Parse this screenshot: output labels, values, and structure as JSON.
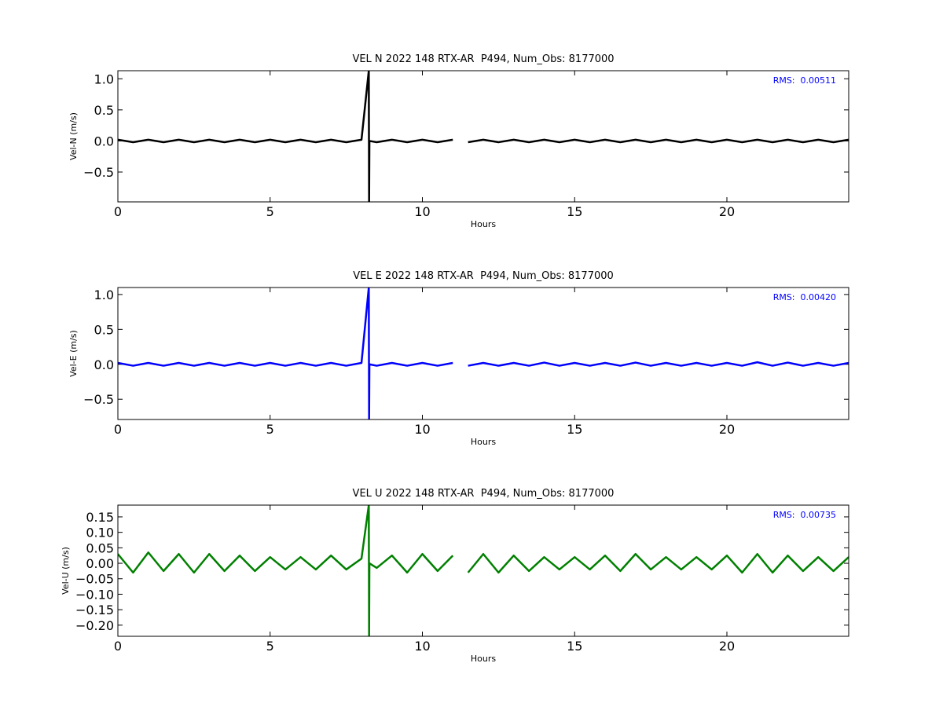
{
  "chart_data": [
    {
      "type": "line",
      "title": "VEL N 2022 148 RTX-AR  P494, Num_Obs: 8177000",
      "y_label": "Vel-N (m/s)",
      "x_label": "Hours",
      "annotation": "RMS:  0.00511",
      "annotation_color": "#0000ff",
      "color": "#000000",
      "xlim": [
        0,
        24
      ],
      "xticks": [
        0,
        5,
        10,
        15,
        20
      ],
      "ylim": [
        -0.98,
        1.13
      ],
      "yticks": [
        {
          "value": 1.0,
          "label": "1.0"
        },
        0.5,
        {
          "value": 0.0,
          "label": "0.0"
        },
        {
          "value": -0.5,
          "label": "−0.5"
        }
      ],
      "x": [
        0,
        0.5,
        1,
        1.5,
        2,
        2.5,
        3,
        3.5,
        4,
        4.5,
        5,
        5.5,
        6,
        6.5,
        7,
        7.5,
        8,
        8.24,
        8.25,
        8.26,
        8.5,
        9,
        9.5,
        10,
        10.5,
        11,
        11.25,
        11.5,
        12,
        12.5,
        13,
        13.5,
        14,
        14.5,
        15,
        15.5,
        16,
        16.5,
        17,
        17.5,
        18,
        18.5,
        19,
        19.5,
        20,
        20.5,
        21,
        21.5,
        22,
        22.5,
        23,
        23.5,
        24
      ],
      "values": [
        0.02,
        -0.02,
        0.02,
        -0.02,
        0.02,
        -0.02,
        0.02,
        -0.02,
        0.02,
        -0.02,
        0.02,
        -0.02,
        0.02,
        -0.02,
        0.02,
        -0.02,
        0.02,
        1.13,
        -0.98,
        0.0,
        -0.02,
        0.02,
        -0.02,
        0.02,
        -0.02,
        0.02,
        null,
        -0.02,
        0.02,
        -0.02,
        0.02,
        -0.02,
        0.02,
        -0.02,
        0.02,
        -0.02,
        0.02,
        -0.02,
        0.02,
        -0.02,
        0.02,
        -0.02,
        0.02,
        -0.02,
        0.02,
        -0.02,
        0.02,
        -0.02,
        0.02,
        -0.02,
        0.02,
        -0.02,
        0.02
      ]
    },
    {
      "type": "line",
      "title": "VEL E 2022 148 RTX-AR  P494, Num_Obs: 8177000",
      "y_label": "Vel-E (m/s)",
      "x_label": "Hours",
      "annotation": "RMS:  0.00420",
      "annotation_color": "#0000ff",
      "color": "#0000ff",
      "xlim": [
        0,
        24
      ],
      "xticks": [
        0,
        5,
        10,
        15,
        20
      ],
      "ylim": [
        -0.79,
        1.1
      ],
      "yticks": [
        {
          "value": 1.0,
          "label": "1.0"
        },
        0.5,
        {
          "value": 0.0,
          "label": "0.0"
        },
        {
          "value": -0.5,
          "label": "−0.5"
        }
      ],
      "x": [
        0,
        0.5,
        1,
        1.5,
        2,
        2.5,
        3,
        3.5,
        4,
        4.5,
        5,
        5.5,
        6,
        6.5,
        7,
        7.5,
        8,
        8.24,
        8.25,
        8.26,
        8.5,
        9,
        9.5,
        10,
        10.5,
        11,
        11.25,
        11.5,
        12,
        12.5,
        13,
        13.5,
        14,
        14.5,
        15,
        15.5,
        16,
        16.5,
        17,
        17.5,
        18,
        18.5,
        19,
        19.5,
        20,
        20.5,
        21,
        21.5,
        22,
        22.5,
        23,
        23.5,
        24
      ],
      "values": [
        0.02,
        -0.02,
        0.02,
        -0.02,
        0.02,
        -0.02,
        0.02,
        -0.02,
        0.02,
        -0.02,
        0.02,
        -0.02,
        0.02,
        -0.02,
        0.02,
        -0.02,
        0.02,
        1.1,
        -0.79,
        0.0,
        -0.02,
        0.02,
        -0.02,
        0.02,
        -0.02,
        0.02,
        null,
        -0.02,
        0.02,
        -0.02,
        0.02,
        -0.02,
        0.025,
        -0.02,
        0.02,
        -0.02,
        0.02,
        -0.02,
        0.025,
        -0.02,
        0.02,
        -0.02,
        0.02,
        -0.02,
        0.02,
        -0.02,
        0.03,
        -0.02,
        0.025,
        -0.02,
        0.02,
        -0.02,
        0.02
      ]
    },
    {
      "type": "line",
      "title": "VEL U 2022 148 RTX-AR  P494, Num_Obs: 8177000",
      "y_label": "Vel-U (m/s)",
      "x_label": "Hours",
      "annotation": "RMS:  0.00735",
      "annotation_color": "#0000ff",
      "color": "#008000",
      "xlim": [
        0,
        24
      ],
      "xticks": [
        0,
        5,
        10,
        15,
        20
      ],
      "ylim": [
        -0.236,
        0.188
      ],
      "yticks": [
        0.15,
        {
          "value": 0.1,
          "label": "0.10"
        },
        0.05,
        {
          "value": 0.0,
          "label": "0.00"
        },
        {
          "value": -0.05,
          "label": "−0.05"
        },
        {
          "value": -0.1,
          "label": "−0.10"
        },
        {
          "value": -0.15,
          "label": "−0.15"
        },
        {
          "value": -0.2,
          "label": "−0.20"
        }
      ],
      "x": [
        0,
        0.5,
        1,
        1.5,
        2,
        2.5,
        3,
        3.5,
        4,
        4.5,
        5,
        5.5,
        6,
        6.5,
        7,
        7.5,
        8,
        8.24,
        8.25,
        8.26,
        8.5,
        9,
        9.5,
        10,
        10.5,
        11,
        11.25,
        11.5,
        12,
        12.5,
        13,
        13.5,
        14,
        14.5,
        15,
        15.5,
        16,
        16.5,
        17,
        17.5,
        18,
        18.5,
        19,
        19.5,
        20,
        20.5,
        21,
        21.5,
        22,
        22.5,
        23,
        23.5,
        24
      ],
      "values": [
        0.03,
        -0.03,
        0.035,
        -0.025,
        0.03,
        -0.03,
        0.03,
        -0.025,
        0.025,
        -0.025,
        0.02,
        -0.02,
        0.02,
        -0.02,
        0.025,
        -0.02,
        0.015,
        0.188,
        -0.236,
        0.0,
        -0.015,
        0.025,
        -0.03,
        0.03,
        -0.025,
        0.025,
        null,
        -0.03,
        0.03,
        -0.03,
        0.025,
        -0.025,
        0.02,
        -0.02,
        0.02,
        -0.02,
        0.025,
        -0.025,
        0.03,
        -0.02,
        0.02,
        -0.02,
        0.02,
        -0.02,
        0.025,
        -0.03,
        0.03,
        -0.03,
        0.025,
        -0.025,
        0.02,
        -0.025,
        0.02
      ]
    }
  ]
}
